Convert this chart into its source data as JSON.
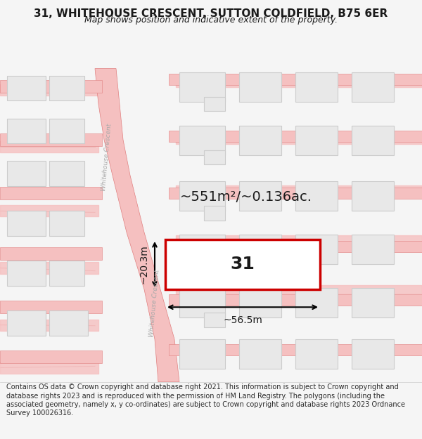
{
  "title": "31, WHITEHOUSE CRESCENT, SUTTON COLDFIELD, B75 6ER",
  "subtitle": "Map shows position and indicative extent of the property.",
  "area_label": "~551m²/~0.136ac.",
  "plot_number": "31",
  "width_label": "~56.5m",
  "height_label": "~20.3m",
  "footer": "Contains OS data © Crown copyright and database right 2021. This information is subject to Crown copyright and database rights 2023 and is reproduced with the permission of HM Land Registry. The polygons (including the associated geometry, namely x, y co-ordinates) are subject to Crown copyright and database rights 2023 Ordnance Survey 100026316.",
  "bg_color": "#f5f5f5",
  "map_bg": "#f0eeee",
  "road_color": "#f5c0c0",
  "road_line_color": "#e08080",
  "building_fill": "#e8e8e8",
  "building_edge": "#cccccc",
  "plot_fill": "#ffffff",
  "plot_edge": "#cc0000",
  "text_color": "#1a1a1a",
  "road_text_color": "#aaaaaa",
  "footer_bg": "#ffffff",
  "title_fontsize": 11,
  "subtitle_fontsize": 9,
  "area_fontsize": 14,
  "plot_num_fontsize": 18,
  "measure_fontsize": 10,
  "footer_fontsize": 7
}
